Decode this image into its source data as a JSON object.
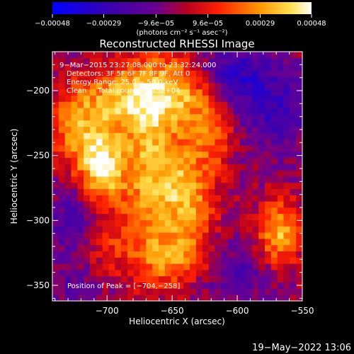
{
  "chart_data": {
    "type": "heatmap",
    "title": "Reconstructed RHESSI Image",
    "xlabel": "Heliocentric X (arcsec)",
    "ylabel": "Heliocentric Y (arcsec)",
    "xlim": [
      -742,
      -550
    ],
    "ylim": [
      -362,
      -170
    ],
    "xticks": [
      -700,
      -650,
      -600,
      -550
    ],
    "yticks": [
      -200,
      -250,
      -300,
      -350
    ],
    "xtick_labels": [
      "−700",
      "−650",
      "−600",
      "−550"
    ],
    "ytick_labels": [
      "−200",
      "−250",
      "−300",
      "−350"
    ],
    "colorbar": {
      "min": -0.00048,
      "max": 0.00048,
      "ticks": [
        -0.00048,
        -0.00029,
        -9.6e-05,
        9.6e-05,
        0.00029,
        0.00048
      ],
      "tick_labels": [
        "−0.00048",
        "−0.00029",
        "−9.6e−05",
        "9.6e−05",
        "0.00029",
        "0.00048"
      ],
      "units": "(photons cm⁻² s⁻¹ asec⁻²)"
    },
    "annotations": [
      "9−Mar−2015 23:27:08.000 to 23:32:24.000",
      "Detectors: 3F 5F 6F 7F 8F 9F, Att 0",
      "Energy Range: 25.0 − 50.0 keV",
      "Clean     Total counts: 1.15E+04"
    ],
    "peak_label": "Position of Peak = [−704,−258]",
    "peak": [
      -704,
      -258
    ],
    "grid_cells": 40,
    "features": [
      {
        "x": -704,
        "y": -258,
        "sx": 12,
        "sy": 22,
        "amp": 0.00046
      },
      {
        "x": -690,
        "y": -205,
        "sx": 22,
        "sy": 16,
        "amp": 0.00032
      },
      {
        "x": -725,
        "y": -230,
        "sx": 14,
        "sy": 22,
        "amp": 0.00028
      },
      {
        "x": -668,
        "y": -250,
        "sx": 16,
        "sy": 55,
        "amp": 0.00036
      },
      {
        "x": -640,
        "y": -200,
        "sx": 16,
        "sy": 18,
        "amp": 0.00034
      },
      {
        "x": -638,
        "y": -280,
        "sx": 15,
        "sy": 30,
        "amp": 0.00034
      },
      {
        "x": -618,
        "y": -230,
        "sx": 10,
        "sy": 20,
        "amp": 0.00022
      },
      {
        "x": -650,
        "y": -330,
        "sx": 22,
        "sy": 14,
        "amp": 0.00022
      },
      {
        "x": -568,
        "y": -310,
        "sx": 12,
        "sy": 18,
        "amp": 0.00038
      },
      {
        "x": -700,
        "y": -320,
        "sx": 12,
        "sy": 14,
        "amp": 0.00014
      },
      {
        "x": -605,
        "y": -188,
        "sx": 22,
        "sy": 16,
        "amp": -0.00026
      },
      {
        "x": -570,
        "y": -215,
        "sx": 18,
        "sy": 20,
        "amp": -0.00022
      },
      {
        "x": -725,
        "y": -300,
        "sx": 14,
        "sy": 18,
        "amp": -0.00018
      },
      {
        "x": -600,
        "y": -340,
        "sx": 20,
        "sy": 16,
        "amp": -0.00016
      },
      {
        "x": -725,
        "y": -350,
        "sx": 14,
        "sy": 12,
        "amp": -0.0001
      }
    ]
  },
  "footer": {
    "timestamp": "19−May−2022 13:06"
  }
}
